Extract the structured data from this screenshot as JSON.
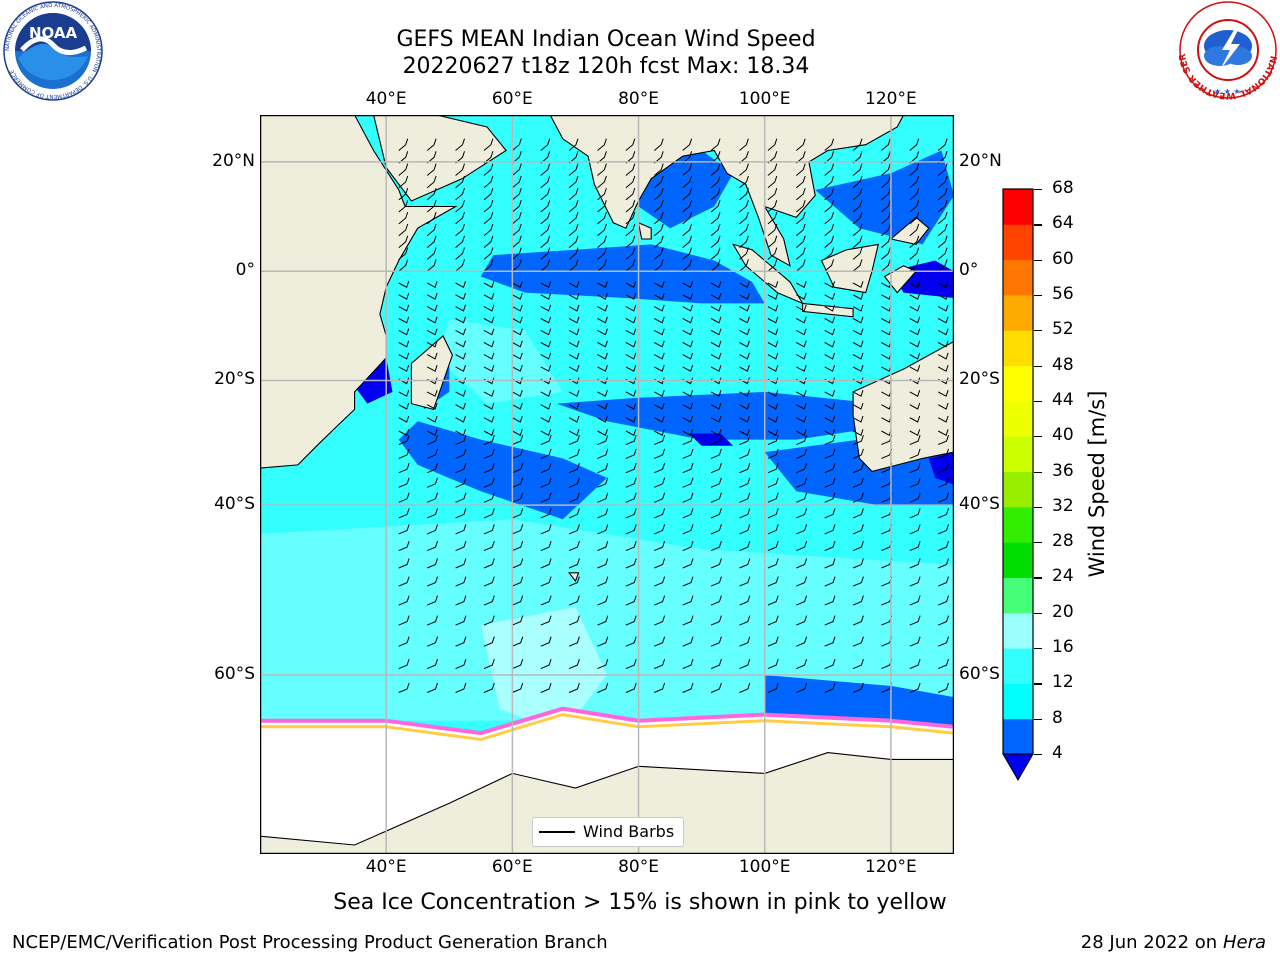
{
  "header": {
    "title_line1": "GEFS MEAN Indian Ocean Wind Speed",
    "title_line2": "20220627 t18z 120h fcst   Max: 18.34"
  },
  "logos": {
    "left": {
      "name": "NOAA",
      "text": "NOAA",
      "ring_text": "NATIONAL OCEANIC AND ATMOSPHERIC ADMINISTRATION · U.S. DEPARTMENT OF COMMERCE"
    },
    "right": {
      "name": "National Weather Service",
      "ring_text": "NATIONAL WEATHER SERVICE"
    }
  },
  "map": {
    "lon_labels": [
      "40°E",
      "60°E",
      "80°E",
      "100°E",
      "120°E"
    ],
    "lat_labels": [
      "20°N",
      "0°",
      "20°S",
      "40°S",
      "60°S"
    ],
    "extent": {
      "lon_min": 20,
      "lon_max": 130,
      "lat_min": -73,
      "lat_max": 28
    },
    "colors": {
      "land": "#efeddc",
      "ice": "#ffffff",
      "grid": "#b8b8b8"
    },
    "legend_label": "Wind Barbs"
  },
  "colorbar": {
    "title": "Wind Speed [m/s]",
    "ticks": [
      "4",
      "8",
      "12",
      "16",
      "20",
      "24",
      "28",
      "32",
      "36",
      "40",
      "44",
      "48",
      "52",
      "56",
      "60",
      "64",
      "68"
    ],
    "colors": [
      "#0066ff",
      "#00ffff",
      "#33ffff",
      "#99ffff",
      "#44ff77",
      "#00dd00",
      "#33ee00",
      "#99ee00",
      "#ccff00",
      "#eeff00",
      "#ffff00",
      "#ffdd00",
      "#ffaa00",
      "#ff7700",
      "#ff4400",
      "#ff0000"
    ],
    "under_color": "#0000ee"
  },
  "caption": "Sea Ice Concentration > 15% is shown in pink to yellow",
  "footer": {
    "left": "NCEP/EMC/Verification Post Processing Product Generation Branch",
    "right_date": "28 Jun 2022 on",
    "right_host": "Hera"
  }
}
